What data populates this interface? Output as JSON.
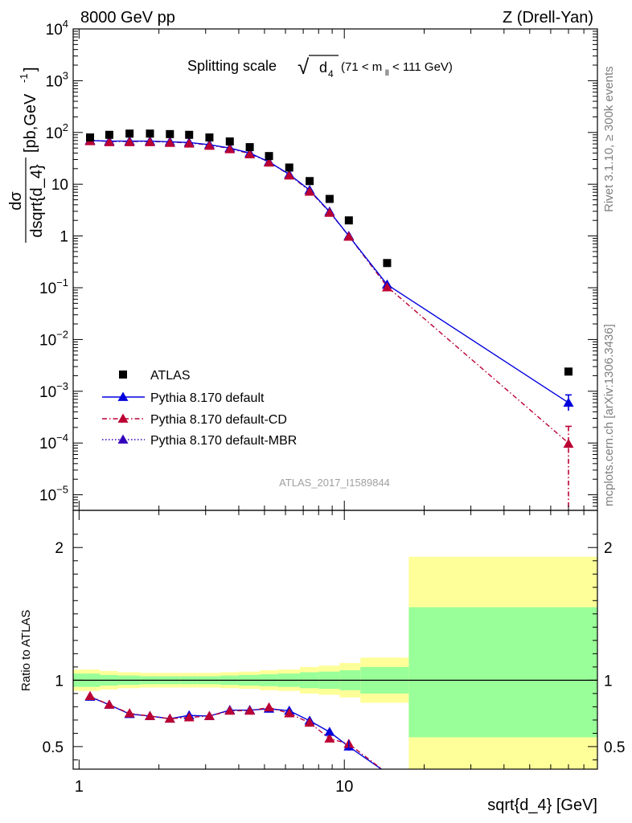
{
  "header": {
    "left": "8000 GeV pp",
    "right": "Z (Drell-Yan)"
  },
  "side_text": {
    "rivet": "Rivet 3.1.10, ≥ 300k events",
    "mcplots": "mcplots.cern.ch [arXiv:1306.3436]"
  },
  "plot_title": {
    "main": "Splitting scale",
    "sqrt_symbol": "√",
    "var": "d",
    "var_sub": "4",
    "cut_open": "(71 < m",
    "cut_sub": "ll",
    "cut_close": " < 111 GeV)"
  },
  "analysis_id": "ATLAS_2017_I1589844",
  "ylabel_top": {
    "num": "dσ",
    "den": "dsqrt{d_4}",
    "unit_open": "[pb,GeV",
    "unit_sup": "-1",
    "unit_close": "]"
  },
  "ylabel_ratio": "Ratio to ATLAS",
  "xlabel": "sqrt{d_4} [GeV]",
  "legend": [
    {
      "label": "ATLAS",
      "color": "#000000",
      "marker": "square",
      "line": "none"
    },
    {
      "label": "Pythia 8.170 default",
      "color": "#0000dd",
      "marker": "triangle",
      "line": "solid"
    },
    {
      "label": "Pythia 8.170 default-CD",
      "color": "#bb0033",
      "marker": "triangle",
      "line": "dashdot"
    },
    {
      "label": "Pythia 8.170 default-MBR",
      "color": "#3300bb",
      "marker": "triangle",
      "line": "dotted"
    }
  ],
  "colors": {
    "band_stat": "#99ff99",
    "band_total": "#ffff99"
  },
  "chart_data": [
    {
      "type": "scatter",
      "panel": "main",
      "xscale": "log",
      "yscale": "log",
      "xlim": [
        0.95,
        90
      ],
      "ylim": [
        5e-06,
        10000
      ],
      "x_ticks": [],
      "y_ticks": [
        {
          "v": 1e-05,
          "base": "10",
          "exp": "−5"
        },
        {
          "v": 0.0001,
          "base": "10",
          "exp": "−4"
        },
        {
          "v": 0.001,
          "base": "10",
          "exp": "−3"
        },
        {
          "v": 0.01,
          "base": "10",
          "exp": "−2"
        },
        {
          "v": 0.1,
          "base": "10",
          "exp": "−1"
        },
        {
          "v": 1,
          "base": "1",
          "exp": ""
        },
        {
          "v": 10,
          "base": "10",
          "exp": ""
        },
        {
          "v": 100,
          "base": "10",
          "exp": "2"
        },
        {
          "v": 1000,
          "base": "10",
          "exp": "3"
        },
        {
          "v": 10000,
          "base": "10",
          "exp": "4"
        }
      ],
      "series": [
        {
          "name": "ATLAS",
          "x": [
            1.1,
            1.3,
            1.55,
            1.85,
            2.2,
            2.6,
            3.1,
            3.7,
            4.4,
            5.2,
            6.2,
            7.4,
            8.8,
            10.4,
            14.5,
            70
          ],
          "y": [
            80,
            90,
            95,
            95,
            93,
            90,
            80,
            67,
            52,
            35,
            21,
            11.5,
            5.2,
            2.0,
            0.3,
            0.0024
          ]
        },
        {
          "name": "Pythia 8.170 default",
          "x": [
            1.1,
            1.3,
            1.55,
            1.85,
            2.2,
            2.6,
            3.1,
            3.7,
            4.4,
            5.2,
            6.2,
            7.4,
            8.8,
            10.4,
            14.5,
            70
          ],
          "y": [
            70,
            68,
            68,
            68,
            66,
            64,
            58,
            50,
            40,
            27,
            15.5,
            7.7,
            2.95,
            1.0,
            0.115,
            0.0006
          ],
          "yerr_last": [
            0.00042,
            0.00085
          ]
        },
        {
          "name": "Pythia 8.170 default-CD",
          "x": [
            1.1,
            1.3,
            1.55,
            1.85,
            2.2,
            2.6,
            3.1,
            3.7,
            4.4,
            5.2,
            6.2,
            7.4,
            8.8,
            10.4,
            14.5,
            70
          ],
          "y": [
            70,
            67,
            67,
            67,
            65,
            63,
            57,
            49,
            39,
            27,
            15.2,
            7.4,
            2.9,
            1.0,
            0.105,
            0.0001
          ],
          "yerr_last": [
            5e-06,
            0.00021
          ]
        }
      ]
    },
    {
      "type": "line",
      "panel": "ratio",
      "xscale": "log",
      "xlim": [
        0.95,
        90
      ],
      "ylim": [
        0.33,
        2.28
      ],
      "y_ticks": [
        {
          "v": 0.5,
          "label": "0.5"
        },
        {
          "v": 1,
          "label": "1"
        },
        {
          "v": 2,
          "label": "2"
        }
      ],
      "x_ticks": [
        {
          "v": 1,
          "label": "1"
        },
        {
          "v": 10,
          "label": "10"
        }
      ],
      "bands": {
        "edges": [
          0.95,
          1.2,
          1.4,
          1.7,
          2.0,
          2.4,
          2.8,
          3.4,
          4.0,
          4.8,
          5.6,
          6.8,
          8.0,
          9.6,
          11.5,
          17.5,
          90
        ],
        "stat_lo": [
          0.95,
          0.96,
          0.965,
          0.97,
          0.97,
          0.97,
          0.97,
          0.965,
          0.96,
          0.955,
          0.95,
          0.94,
          0.935,
          0.925,
          0.9,
          0.57
        ],
        "stat_hi": [
          1.05,
          1.04,
          1.035,
          1.03,
          1.03,
          1.03,
          1.03,
          1.035,
          1.04,
          1.045,
          1.05,
          1.06,
          1.065,
          1.075,
          1.1,
          1.55
        ],
        "tot_lo": [
          0.92,
          0.93,
          0.94,
          0.945,
          0.945,
          0.945,
          0.945,
          0.94,
          0.935,
          0.925,
          0.92,
          0.9,
          0.89,
          0.87,
          0.83,
          0.3
        ],
        "tot_hi": [
          1.08,
          1.07,
          1.06,
          1.055,
          1.055,
          1.055,
          1.055,
          1.06,
          1.065,
          1.075,
          1.08,
          1.1,
          1.11,
          1.13,
          1.17,
          1.93
        ]
      },
      "series": [
        {
          "name": "Pythia 8.170 default",
          "x": [
            1.1,
            1.3,
            1.55,
            1.85,
            2.2,
            2.6,
            3.1,
            3.7,
            4.4,
            5.2,
            6.2,
            7.4,
            8.8,
            10.4,
            14.5
          ],
          "y": [
            0.875,
            0.815,
            0.745,
            0.73,
            0.71,
            0.735,
            0.73,
            0.775,
            0.775,
            0.785,
            0.77,
            0.695,
            0.61,
            0.5,
            0.3
          ]
        },
        {
          "name": "Pythia 8.170 default-CD",
          "x": [
            1.1,
            1.3,
            1.55,
            1.85,
            2.2,
            2.6,
            3.1,
            3.7,
            4.4,
            5.2,
            6.2,
            7.4,
            8.8,
            10.4,
            14.5
          ],
          "y": [
            0.88,
            0.815,
            0.75,
            0.73,
            0.71,
            0.72,
            0.73,
            0.77,
            0.77,
            0.795,
            0.75,
            0.68,
            0.56,
            0.52,
            0.3
          ]
        }
      ]
    }
  ]
}
